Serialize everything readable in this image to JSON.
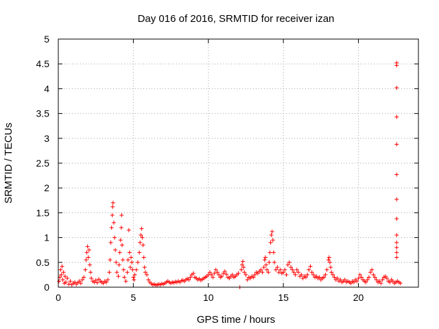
{
  "chart_data": {
    "type": "scatter",
    "title": "Day 016 of 2016, SRMTID for receiver izan",
    "xlabel": "GPS time / hours",
    "ylabel": "SRMTID / TECUs",
    "xlim": [
      0,
      24
    ],
    "ylim": [
      0,
      5
    ],
    "xticks": [
      0,
      5,
      10,
      15,
      20
    ],
    "yticks": [
      0,
      0.5,
      1,
      1.5,
      2,
      2.5,
      3,
      3.5,
      4,
      4.5,
      5
    ],
    "xtick_labels": [
      "0",
      "5",
      "10",
      "15",
      "20"
    ],
    "ytick_labels": [
      "0",
      "0.5",
      "1",
      "1.5",
      "2",
      "2.5",
      "3",
      "3.5",
      "4",
      "4.5",
      "5"
    ],
    "grid": true,
    "marker": "+",
    "color": "#ff0000",
    "series": [
      {
        "name": "SRMTID",
        "points": [
          [
            0.05,
            0.12
          ],
          [
            0.1,
            0.2
          ],
          [
            0.15,
            0.35
          ],
          [
            0.2,
            0.25
          ],
          [
            0.25,
            0.42
          ],
          [
            0.3,
            0.15
          ],
          [
            0.35,
            0.3
          ],
          [
            0.4,
            0.08
          ],
          [
            0.45,
            0.22
          ],
          [
            0.5,
            0.1
          ],
          [
            0.6,
            0.18
          ],
          [
            0.7,
            0.06
          ],
          [
            0.8,
            0.12
          ],
          [
            0.9,
            0.05
          ],
          [
            1.0,
            0.08
          ],
          [
            1.1,
            0.1
          ],
          [
            1.2,
            0.06
          ],
          [
            1.3,
            0.09
          ],
          [
            1.4,
            0.12
          ],
          [
            1.5,
            0.08
          ],
          [
            1.6,
            0.15
          ],
          [
            1.7,
            0.2
          ],
          [
            1.8,
            0.35
          ],
          [
            1.85,
            0.55
          ],
          [
            1.9,
            0.7
          ],
          [
            1.95,
            0.82
          ],
          [
            2.0,
            0.6
          ],
          [
            2.05,
            0.75
          ],
          [
            2.1,
            0.45
          ],
          [
            2.15,
            0.3
          ],
          [
            2.2,
            0.18
          ],
          [
            2.3,
            0.12
          ],
          [
            2.4,
            0.1
          ],
          [
            2.5,
            0.14
          ],
          [
            2.6,
            0.09
          ],
          [
            2.7,
            0.16
          ],
          [
            2.8,
            0.12
          ],
          [
            2.9,
            0.1
          ],
          [
            3.0,
            0.08
          ],
          [
            3.1,
            0.12
          ],
          [
            3.2,
            0.1
          ],
          [
            3.3,
            0.15
          ],
          [
            3.4,
            0.3
          ],
          [
            3.45,
            0.55
          ],
          [
            3.5,
            0.9
          ],
          [
            3.55,
            1.2
          ],
          [
            3.6,
            1.45
          ],
          [
            3.62,
            1.62
          ],
          [
            3.65,
            1.7
          ],
          [
            3.7,
            1.3
          ],
          [
            3.75,
            1.0
          ],
          [
            3.8,
            0.75
          ],
          [
            3.85,
            0.5
          ],
          [
            3.9,
            0.3
          ],
          [
            4.0,
            0.22
          ],
          [
            4.05,
            0.45
          ],
          [
            4.1,
            0.7
          ],
          [
            4.15,
            0.95
          ],
          [
            4.2,
            1.2
          ],
          [
            4.22,
            1.45
          ],
          [
            4.25,
            0.85
          ],
          [
            4.3,
            0.55
          ],
          [
            4.35,
            0.35
          ],
          [
            4.4,
            0.2
          ],
          [
            4.5,
            0.12
          ],
          [
            4.6,
            0.3
          ],
          [
            4.65,
            0.55
          ],
          [
            4.7,
            1.15
          ],
          [
            4.75,
            0.7
          ],
          [
            4.8,
            0.4
          ],
          [
            4.85,
            0.6
          ],
          [
            4.9,
            0.5
          ],
          [
            4.95,
            0.35
          ],
          [
            5.0,
            0.2
          ],
          [
            5.05,
            0.15
          ],
          [
            5.1,
            0.25
          ],
          [
            5.2,
            0.35
          ],
          [
            5.3,
            0.5
          ],
          [
            5.4,
            0.7
          ],
          [
            5.45,
            0.9
          ],
          [
            5.5,
            1.05
          ],
          [
            5.55,
            1.18
          ],
          [
            5.6,
            1.0
          ],
          [
            5.65,
            0.85
          ],
          [
            5.7,
            0.6
          ],
          [
            5.75,
            0.4
          ],
          [
            5.8,
            0.3
          ],
          [
            5.9,
            0.25
          ],
          [
            6.0,
            0.15
          ],
          [
            6.1,
            0.1
          ],
          [
            6.2,
            0.07
          ],
          [
            6.3,
            0.05
          ],
          [
            6.4,
            0.06
          ],
          [
            6.5,
            0.04
          ],
          [
            6.6,
            0.05
          ],
          [
            6.7,
            0.06
          ],
          [
            6.8,
            0.05
          ],
          [
            6.9,
            0.07
          ],
          [
            7.0,
            0.06
          ],
          [
            7.1,
            0.08
          ],
          [
            7.2,
            0.1
          ],
          [
            7.3,
            0.12
          ],
          [
            7.4,
            0.1
          ],
          [
            7.5,
            0.08
          ],
          [
            7.6,
            0.1
          ],
          [
            7.7,
            0.09
          ],
          [
            7.8,
            0.11
          ],
          [
            7.9,
            0.1
          ],
          [
            8.0,
            0.12
          ],
          [
            8.1,
            0.1
          ],
          [
            8.2,
            0.13
          ],
          [
            8.3,
            0.14
          ],
          [
            8.4,
            0.12
          ],
          [
            8.5,
            0.15
          ],
          [
            8.6,
            0.17
          ],
          [
            8.7,
            0.15
          ],
          [
            8.8,
            0.2
          ],
          [
            8.9,
            0.25
          ],
          [
            9.0,
            0.28
          ],
          [
            9.1,
            0.2
          ],
          [
            9.2,
            0.18
          ],
          [
            9.3,
            0.15
          ],
          [
            9.4,
            0.17
          ],
          [
            9.5,
            0.14
          ],
          [
            9.6,
            0.16
          ],
          [
            9.7,
            0.18
          ],
          [
            9.8,
            0.2
          ],
          [
            9.9,
            0.22
          ],
          [
            10.0,
            0.25
          ],
          [
            10.1,
            0.3
          ],
          [
            10.2,
            0.25
          ],
          [
            10.3,
            0.2
          ],
          [
            10.4,
            0.28
          ],
          [
            10.5,
            0.35
          ],
          [
            10.6,
            0.3
          ],
          [
            10.7,
            0.25
          ],
          [
            10.8,
            0.2
          ],
          [
            10.9,
            0.22
          ],
          [
            11.0,
            0.28
          ],
          [
            11.1,
            0.32
          ],
          [
            11.2,
            0.26
          ],
          [
            11.3,
            0.2
          ],
          [
            11.4,
            0.18
          ],
          [
            11.5,
            0.22
          ],
          [
            11.6,
            0.25
          ],
          [
            11.7,
            0.2
          ],
          [
            11.8,
            0.22
          ],
          [
            11.9,
            0.25
          ],
          [
            12.0,
            0.28
          ],
          [
            12.1,
            0.0
          ],
          [
            12.2,
            0.35
          ],
          [
            12.25,
            0.45
          ],
          [
            12.3,
            0.52
          ],
          [
            12.35,
            0.4
          ],
          [
            12.4,
            0.3
          ],
          [
            12.5,
            0.25
          ],
          [
            12.6,
            0.15
          ],
          [
            12.7,
            0.2
          ],
          [
            12.8,
            0.18
          ],
          [
            12.9,
            0.22
          ],
          [
            13.0,
            0.2
          ],
          [
            13.1,
            0.25
          ],
          [
            13.2,
            0.3
          ],
          [
            13.3,
            0.28
          ],
          [
            13.4,
            0.32
          ],
          [
            13.5,
            0.35
          ],
          [
            13.6,
            0.3
          ],
          [
            13.7,
            0.4
          ],
          [
            13.75,
            0.55
          ],
          [
            13.8,
            0.6
          ],
          [
            13.85,
            0.45
          ],
          [
            13.9,
            0.35
          ],
          [
            14.0,
            0.3
          ],
          [
            14.05,
            0.5
          ],
          [
            14.1,
            0.7
          ],
          [
            14.15,
            0.9
          ],
          [
            14.2,
            1.05
          ],
          [
            14.25,
            1.12
          ],
          [
            14.3,
            0.95
          ],
          [
            14.35,
            0.7
          ],
          [
            14.4,
            0.5
          ],
          [
            14.5,
            0.35
          ],
          [
            14.6,
            0.4
          ],
          [
            14.7,
            0.3
          ],
          [
            14.8,
            0.35
          ],
          [
            14.9,
            0.28
          ],
          [
            15.0,
            0.3
          ],
          [
            15.1,
            0.35
          ],
          [
            15.2,
            0.25
          ],
          [
            15.3,
            0.45
          ],
          [
            15.4,
            0.5
          ],
          [
            15.5,
            0.4
          ],
          [
            15.6,
            0.35
          ],
          [
            15.7,
            0.3
          ],
          [
            15.8,
            0.25
          ],
          [
            15.9,
            0.35
          ],
          [
            16.0,
            0.3
          ],
          [
            16.1,
            0.22
          ],
          [
            16.2,
            0.25
          ],
          [
            16.3,
            0.18
          ],
          [
            16.4,
            0.22
          ],
          [
            16.5,
            0.2
          ],
          [
            16.6,
            0.25
          ],
          [
            16.7,
            0.35
          ],
          [
            16.8,
            0.42
          ],
          [
            16.9,
            0.3
          ],
          [
            17.0,
            0.25
          ],
          [
            17.1,
            0.2
          ],
          [
            17.2,
            0.22
          ],
          [
            17.3,
            0.18
          ],
          [
            17.4,
            0.2
          ],
          [
            17.5,
            0.15
          ],
          [
            17.6,
            0.18
          ],
          [
            17.7,
            0.2
          ],
          [
            17.8,
            0.25
          ],
          [
            17.9,
            0.35
          ],
          [
            18.0,
            0.55
          ],
          [
            18.05,
            0.6
          ],
          [
            18.1,
            0.5
          ],
          [
            18.15,
            0.4
          ],
          [
            18.2,
            0.3
          ],
          [
            18.3,
            0.25
          ],
          [
            18.4,
            0.2
          ],
          [
            18.5,
            0.15
          ],
          [
            18.6,
            0.18
          ],
          [
            18.7,
            0.12
          ],
          [
            18.8,
            0.15
          ],
          [
            18.9,
            0.1
          ],
          [
            19.0,
            0.12
          ],
          [
            19.1,
            0.15
          ],
          [
            19.2,
            0.1
          ],
          [
            19.3,
            0.12
          ],
          [
            19.4,
            0.1
          ],
          [
            19.5,
            0.08
          ],
          [
            19.6,
            0.12
          ],
          [
            19.7,
            0.1
          ],
          [
            19.8,
            0.15
          ],
          [
            19.9,
            0.12
          ],
          [
            20.0,
            0.18
          ],
          [
            20.1,
            0.25
          ],
          [
            20.2,
            0.2
          ],
          [
            20.3,
            0.15
          ],
          [
            20.4,
            0.12
          ],
          [
            20.5,
            0.1
          ],
          [
            20.6,
            0.15
          ],
          [
            20.7,
            0.2
          ],
          [
            20.8,
            0.3
          ],
          [
            20.9,
            0.35
          ],
          [
            21.0,
            0.25
          ],
          [
            21.1,
            0.2
          ],
          [
            21.2,
            0.15
          ],
          [
            21.3,
            0.1
          ],
          [
            21.4,
            0.12
          ],
          [
            21.5,
            0.08
          ],
          [
            21.6,
            0.15
          ],
          [
            21.7,
            0.2
          ],
          [
            21.8,
            0.22
          ],
          [
            21.9,
            0.18
          ],
          [
            22.0,
            0.12
          ],
          [
            22.1,
            0.1
          ],
          [
            22.2,
            0.15
          ],
          [
            22.3,
            0.12
          ],
          [
            22.4,
            0.08
          ],
          [
            22.5,
            0.1
          ],
          [
            22.6,
            0.12
          ],
          [
            22.7,
            0.1
          ],
          [
            22.8,
            0.08
          ],
          [
            22.55,
            0.6
          ],
          [
            22.55,
            0.7
          ],
          [
            22.55,
            0.8
          ],
          [
            22.55,
            0.9
          ],
          [
            22.55,
            1.05
          ],
          [
            22.55,
            1.38
          ],
          [
            22.55,
            1.77
          ],
          [
            22.55,
            2.27
          ],
          [
            22.55,
            2.88
          ],
          [
            22.55,
            3.43
          ],
          [
            22.55,
            4.02
          ],
          [
            22.55,
            4.47
          ],
          [
            22.55,
            4.52
          ]
        ]
      }
    ]
  }
}
